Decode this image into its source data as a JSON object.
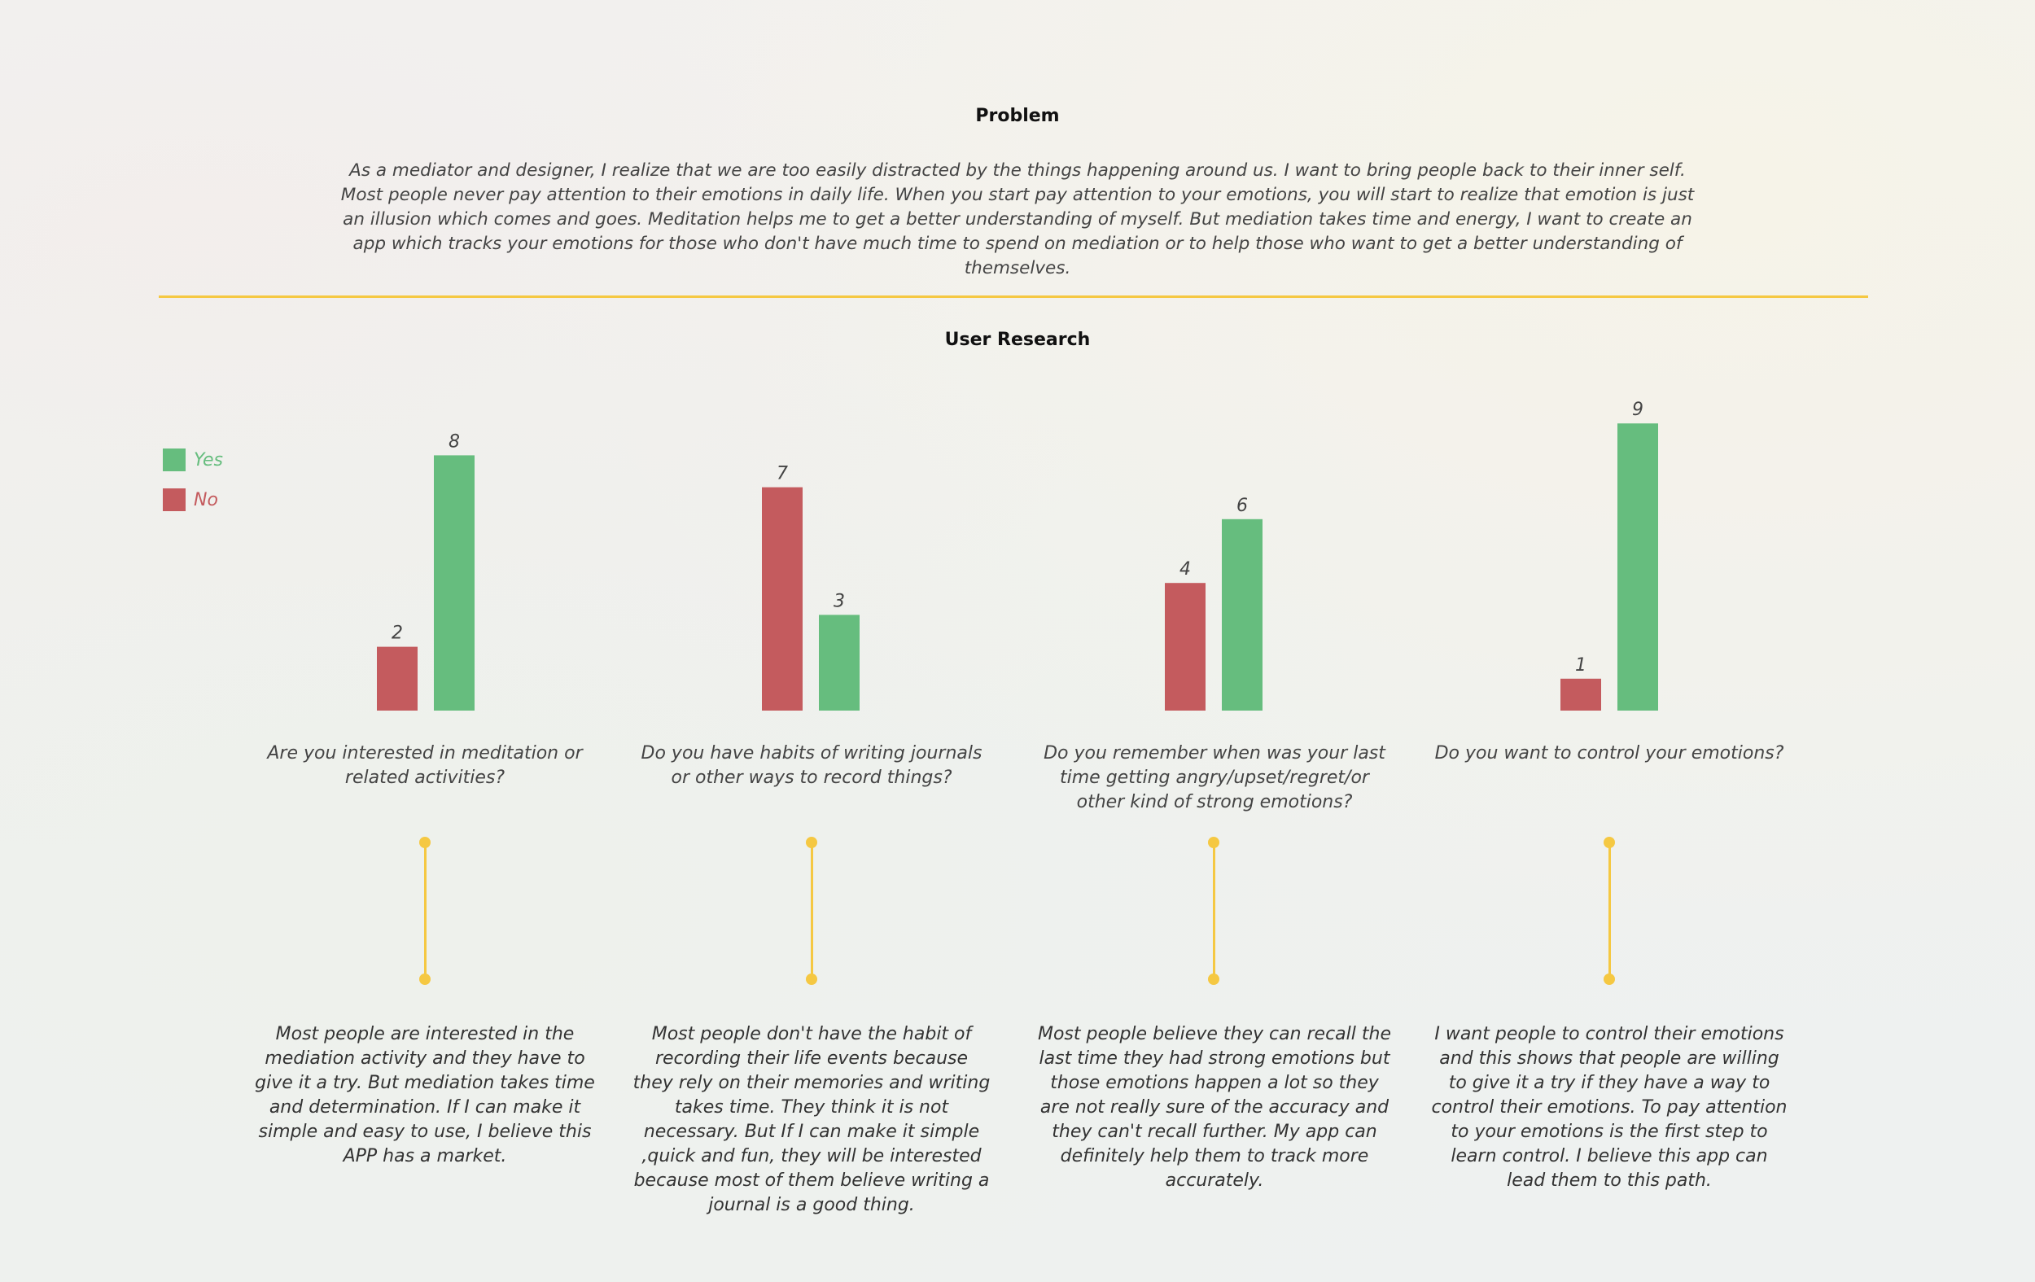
{
  "problem": {
    "title": "Problem",
    "text": "As a mediator and designer, I realize that we are too easily distracted by the things happening around us. I want to bring people back to their inner self. Most people never pay attention to their emotions in daily life. When you start pay attention to your emotions, you will start to realize that emotion is just an illusion which comes and goes. Meditation helps me to get a better understanding of myself. But mediation takes time and energy, I want to create an app which tracks your emotions for those who don't have much time to spend on mediation or to help those who want to get a better understanding of themselves."
  },
  "research": {
    "title": "User Research",
    "questions": [
      "Are you interested in meditation or related activities?",
      "Do you have habits of writing journals or other ways to record things?",
      "Do you remember when was your last time getting angry/upset/regret/or other kind of strong emotions?",
      "Do you want to control your emotions?"
    ],
    "insights": [
      "Most people are interested in the mediation activity and they have to give it a try. But mediation takes time and determination. If I can make it simple and easy to use, I believe this APP has a market.",
      "Most people don't have the habit of recording their life events because they rely on their memories and writing takes time. They think it is not necessary. But If I can make it simple ,quick and fun, they will be interested because most of them believe writing a journal is a good thing.",
      "Most people believe they can recall the last time they had strong emotions but those emotions happen a lot so they are not really sure of the accuracy and they can't recall further. My app can definitely help them to track more accurately.",
      "I want people to control their emotions and this shows that people are willing to give it a try if they have a way to control their emotions. To pay attention to your emotions is the first step to learn control. I believe this app can lead them to this path."
    ]
  },
  "colors": {
    "yes": "#66bd7e",
    "no": "#c45b5e",
    "accent": "#f5c842"
  },
  "chart_data": {
    "type": "bar",
    "categories": [
      "Are you interested in meditation or related activities?",
      "Do you have habits of writing journals or other ways to record things?",
      "Do you remember when was your last time getting angry/upset/regret/or other kind of strong emotions?",
      "Do you want to control your emotions?"
    ],
    "series": [
      {
        "name": "No",
        "values": [
          2,
          7,
          4,
          1
        ]
      },
      {
        "name": "Yes",
        "values": [
          8,
          3,
          6,
          9
        ]
      }
    ],
    "legend": {
      "position": "top-left",
      "entries": [
        "Yes",
        "No"
      ]
    },
    "grid": false
  }
}
